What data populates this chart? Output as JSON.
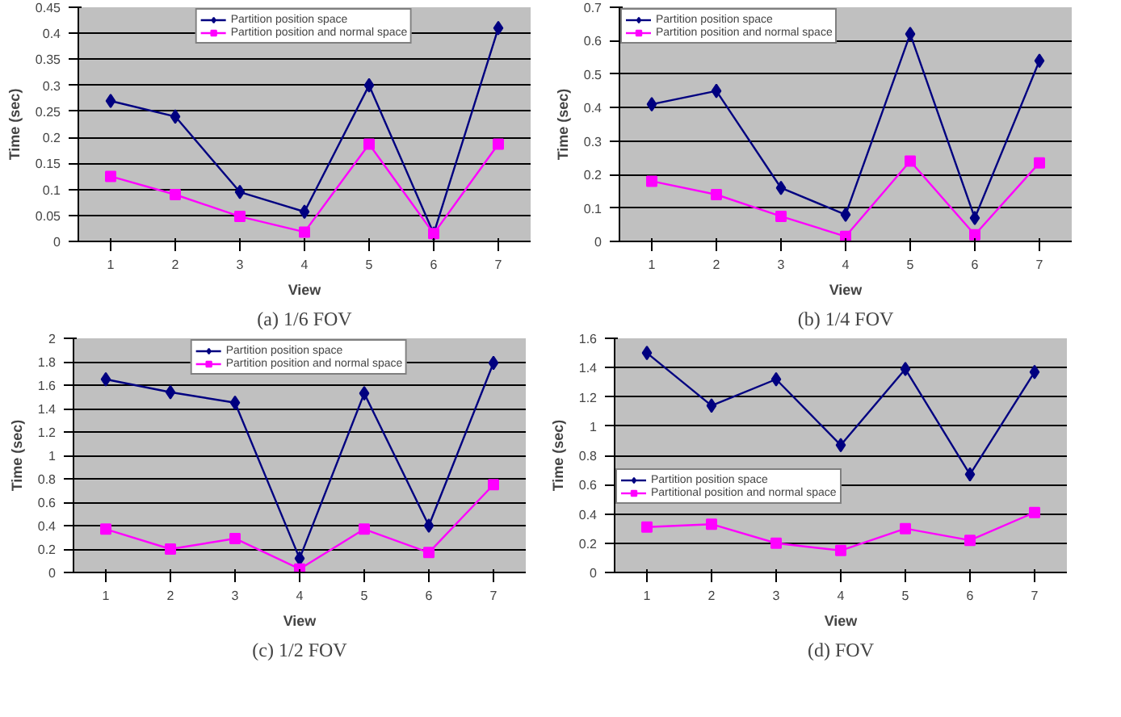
{
  "chart_data": [
    {
      "type": "line",
      "title": "(a) 1/6 FOV",
      "xlabel": "View",
      "ylabel": "Time (sec)",
      "categories": [
        "1",
        "2",
        "3",
        "4",
        "5",
        "6",
        "7"
      ],
      "ylim": [
        0,
        0.45
      ],
      "yticks": [
        0,
        0.05,
        0.1,
        0.15,
        0.2,
        0.25,
        0.3,
        0.35,
        0.4,
        0.45
      ],
      "grid": "y",
      "legend": "top",
      "series": [
        {
          "name": "Partition position space",
          "color": "#000080",
          "marker": "diamond",
          "values": [
            0.27,
            0.24,
            0.095,
            0.057,
            0.3,
            0.015,
            0.41
          ]
        },
        {
          "name": "Partition position and normal space",
          "color": "#ff00ff",
          "marker": "square",
          "values": [
            0.125,
            0.09,
            0.048,
            0.018,
            0.187,
            0.015,
            0.187
          ]
        }
      ]
    },
    {
      "type": "line",
      "title": "(b) 1/4 FOV",
      "xlabel": "View",
      "ylabel": "Time (sec)",
      "categories": [
        "1",
        "2",
        "3",
        "4",
        "5",
        "6",
        "7"
      ],
      "ylim": [
        0,
        0.7
      ],
      "yticks": [
        0,
        0.1,
        0.2,
        0.3,
        0.4,
        0.5,
        0.6,
        0.7
      ],
      "grid": "y",
      "legend": "top left",
      "series": [
        {
          "name": "Partition position space",
          "color": "#000080",
          "marker": "diamond",
          "values": [
            0.41,
            0.45,
            0.16,
            0.08,
            0.62,
            0.07,
            0.54
          ]
        },
        {
          "name": "Partition position and normal space",
          "color": "#ff00ff",
          "marker": "square",
          "values": [
            0.18,
            0.14,
            0.075,
            0.015,
            0.24,
            0.02,
            0.235
          ]
        }
      ]
    },
    {
      "type": "line",
      "title": "(c) 1/2 FOV",
      "xlabel": "View",
      "ylabel": "Time (sec)",
      "categories": [
        "1",
        "2",
        "3",
        "4",
        "5",
        "6",
        "7"
      ],
      "ylim": [
        0,
        2
      ],
      "yticks": [
        0,
        0.2,
        0.4,
        0.6,
        0.8,
        1,
        1.2,
        1.4,
        1.6,
        1.8,
        2
      ],
      "grid": "y",
      "legend": "top",
      "series": [
        {
          "name": "Partition position space",
          "color": "#000080",
          "marker": "diamond",
          "values": [
            1.65,
            1.54,
            1.45,
            0.12,
            1.53,
            0.4,
            1.79
          ]
        },
        {
          "name": "Partition position and normal space",
          "color": "#ff00ff",
          "marker": "square",
          "values": [
            0.37,
            0.2,
            0.29,
            0.03,
            0.37,
            0.17,
            0.75
          ]
        }
      ]
    },
    {
      "type": "line",
      "title": "(d) FOV",
      "xlabel": "View",
      "ylabel": "Time (sec)",
      "categories": [
        "1",
        "2",
        "3",
        "4",
        "5",
        "6",
        "7"
      ],
      "ylim": [
        0,
        1.6
      ],
      "yticks": [
        0,
        0.2,
        0.4,
        0.6,
        0.8,
        1,
        1.2,
        1.4,
        1.6
      ],
      "grid": "y",
      "legend": "left",
      "series": [
        {
          "name": "Partition position space",
          "color": "#000080",
          "marker": "diamond",
          "values": [
            1.5,
            1.14,
            1.32,
            0.87,
            1.39,
            0.67,
            1.37
          ]
        },
        {
          "name": "Partitional position and normal space",
          "color": "#ff00ff",
          "marker": "square",
          "values": [
            0.31,
            0.33,
            0.2,
            0.15,
            0.3,
            0.22,
            0.41
          ]
        }
      ]
    }
  ]
}
